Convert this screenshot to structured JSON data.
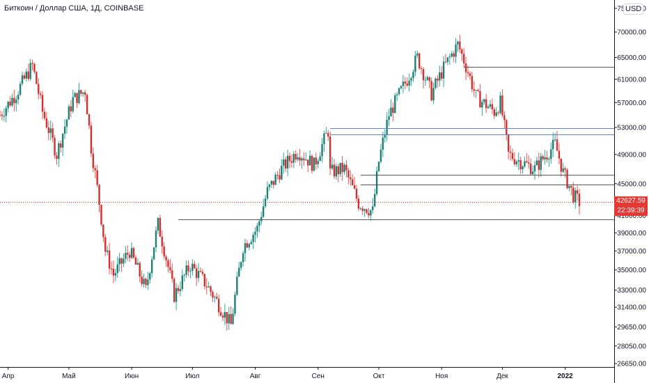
{
  "symbol_title": "Биткоин / Доллар США, 1Д, COINBASE",
  "currency": "USD",
  "last_price": {
    "value": "42627.59",
    "countdown": "22:39:39"
  },
  "colors": {
    "up": "#26a69a",
    "down": "#ef5350",
    "body_up": "#1e7e74",
    "body_down": "#d32f2f",
    "tag": "#e53935",
    "axis": "#131722"
  },
  "chart_data": {
    "type": "candlestick",
    "title": "Биткоин / Доллар США, 1Д, COINBASE",
    "ylim": [
      26000,
      76000
    ],
    "y_scale": "log",
    "y_ticks": [
      "75000.00",
      "70000.00",
      "65000.00",
      "61000.00",
      "57000.00",
      "53000.00",
      "49000.00",
      "45000.00",
      "41000.00",
      "39000.00",
      "37000.00",
      "35000.00",
      "33000.00",
      "31400.00",
      "29650.00",
      "28050.00",
      "26650.00"
    ],
    "x_ticks": [
      "Апр",
      "Май",
      "Июн",
      "Июл",
      "Авг",
      "Сен",
      "Окт",
      "Ноя",
      "Дек",
      "2022"
    ],
    "x_tick_dates": [
      "2021-04-01",
      "2021-05-01",
      "2021-06-01",
      "2021-07-01",
      "2021-08-01",
      "2021-09-01",
      "2021-10-01",
      "2021-11-01",
      "2021-12-01",
      "2022-01-01"
    ],
    "date_range": [
      "2021-03-28",
      "2022-01-08"
    ],
    "grid": false,
    "horizontal_lines": [
      {
        "price": 63300,
        "from": "2021-11-12",
        "color": "#555555"
      },
      {
        "price": 52900,
        "from": "2021-09-07",
        "color": "#5b86c5"
      },
      {
        "price": 52000,
        "from": "2021-09-07",
        "color": "#5b86c5"
      },
      {
        "price": 46200,
        "from": "2021-09-22",
        "color": "#555555"
      },
      {
        "price": 44900,
        "from": "2021-09-22",
        "color": "#555555"
      },
      {
        "price": 40600,
        "from": "2021-06-24",
        "color": "#555555"
      }
    ],
    "path": [
      [
        "2021-03-28",
        55000
      ],
      [
        "2021-04-05",
        58500
      ],
      [
        "2021-04-13",
        63500
      ],
      [
        "2021-04-18",
        55500
      ],
      [
        "2021-04-25",
        49000
      ],
      [
        "2021-05-03",
        57500
      ],
      [
        "2021-05-09",
        59000
      ],
      [
        "2021-05-12",
        50000
      ],
      [
        "2021-05-19",
        37000
      ],
      [
        "2021-05-23",
        34500
      ],
      [
        "2021-05-31",
        37000
      ],
      [
        "2021-06-08",
        33000
      ],
      [
        "2021-06-14",
        40000
      ],
      [
        "2021-06-22",
        32500
      ],
      [
        "2021-06-30",
        35500
      ],
      [
        "2021-07-08",
        33500
      ],
      [
        "2021-07-20",
        29800
      ],
      [
        "2021-07-26",
        37500
      ],
      [
        "2021-08-02",
        39500
      ],
      [
        "2021-08-07",
        44000
      ],
      [
        "2021-08-14",
        47000
      ],
      [
        "2021-08-22",
        49500
      ],
      [
        "2021-08-30",
        47500
      ],
      [
        "2021-09-06",
        52500
      ],
      [
        "2021-09-07",
        46500
      ],
      [
        "2021-09-14",
        47000
      ],
      [
        "2021-09-21",
        42500
      ],
      [
        "2021-09-28",
        41500
      ],
      [
        "2021-10-01",
        48000
      ],
      [
        "2021-10-06",
        55000
      ],
      [
        "2021-10-15",
        61000
      ],
      [
        "2021-10-20",
        65000
      ],
      [
        "2021-10-27",
        58500
      ],
      [
        "2021-11-02",
        63000
      ],
      [
        "2021-11-09",
        67500
      ],
      [
        "2021-11-12",
        64500
      ],
      [
        "2021-11-18",
        58000
      ],
      [
        "2021-11-27",
        55500
      ],
      [
        "2021-11-30",
        57000
      ],
      [
        "2021-12-04",
        49000
      ],
      [
        "2021-12-10",
        48000
      ],
      [
        "2021-12-17",
        47000
      ],
      [
        "2021-12-27",
        50500
      ],
      [
        "2021-12-31",
        46500
      ],
      [
        "2022-01-05",
        43500
      ],
      [
        "2022-01-08",
        42627
      ]
    ]
  }
}
